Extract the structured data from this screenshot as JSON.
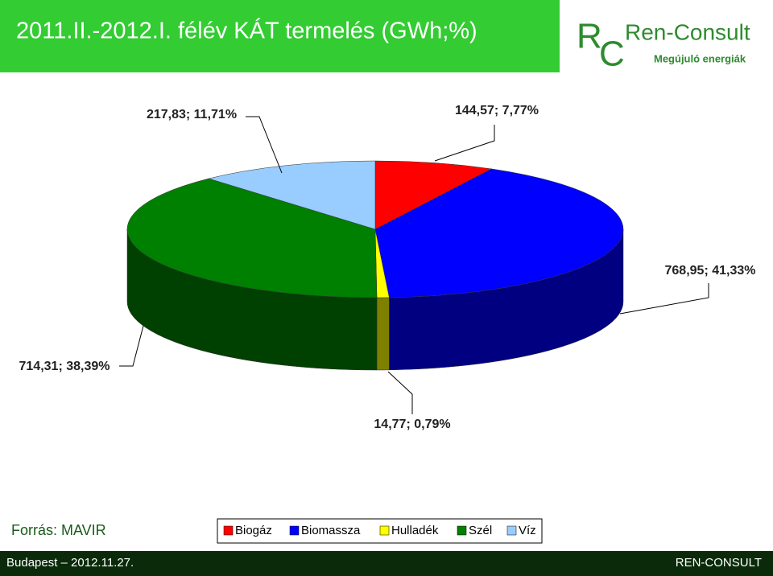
{
  "chart_data": {
    "type": "pie3d",
    "title": "2011.II.-2012.I. félév KÁT termelés (GWh;%)",
    "categories": [
      "Biogáz",
      "Biomassza",
      "Hulladék",
      "Szél",
      "Víz"
    ],
    "values": [
      144.57,
      768.95,
      14.77,
      714.31,
      217.83
    ],
    "value_labels": [
      "144,57; 7,77%",
      "768,95; 41,33%",
      "14,77; 0,79%",
      "714,31; 38,39%",
      "217,83; 11,71%"
    ],
    "colors": [
      "#ff0000",
      "#0000ff",
      "#ffff00",
      "#008000",
      "#99ccff"
    ],
    "legend": "bottom"
  },
  "slide": {
    "logo": {
      "r": "R",
      "c": "C",
      "name": "Ren-Consult",
      "tagline": "Megújuló energiák"
    },
    "source": "Forrás: MAVIR",
    "footer_left": "Budapest – 2012.11.27.",
    "footer_right": "REN-CONSULT"
  }
}
